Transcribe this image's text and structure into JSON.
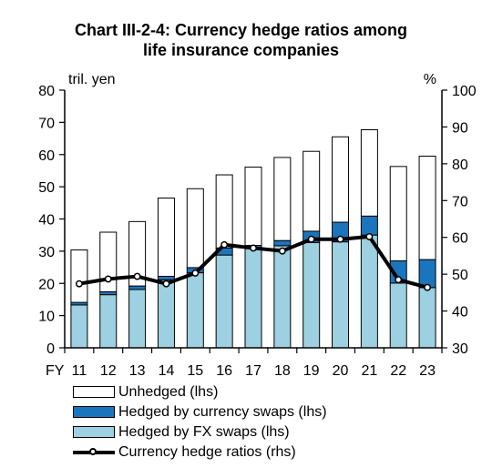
{
  "title_line1": "Chart III-2-4: Currency hedge ratios among",
  "title_line2": "life insurance companies",
  "chart_data": {
    "type": "bar",
    "title": "Chart III-2-4: Currency hedge ratios among life insurance companies",
    "x_prefix": "FY",
    "categories": [
      "11",
      "12",
      "13",
      "14",
      "15",
      "16",
      "17",
      "18",
      "19",
      "20",
      "21",
      "22",
      "23"
    ],
    "ylabel_left": "tril. yen",
    "ylabel_right": "%",
    "ylim_left": [
      0,
      80
    ],
    "yticks_left": [
      "0",
      "10",
      "20",
      "30",
      "40",
      "50",
      "60",
      "70",
      "80"
    ],
    "ylim_right": [
      30,
      100
    ],
    "yticks_right": [
      "30",
      "40",
      "50",
      "60",
      "70",
      "80",
      "90",
      "100"
    ],
    "stacked": true,
    "grid": false,
    "legend_position": "bottom",
    "series": [
      {
        "name": "Hedged by FX swaps (lhs)",
        "axis": "left",
        "color": "#9dd0e0",
        "values": [
          13.3,
          16.5,
          18.1,
          21.1,
          23.3,
          28.8,
          30.8,
          31.7,
          32.7,
          32.9,
          35.0,
          20.1,
          18.7
        ]
      },
      {
        "name": "Hedged by currency swaps (lhs)",
        "axis": "left",
        "color": "#1b75bc",
        "values": [
          0.8,
          0.9,
          1.1,
          1.1,
          1.6,
          2.2,
          1.0,
          1.6,
          3.5,
          6.1,
          5.9,
          6.9,
          8.7
        ]
      },
      {
        "name": "Unhedged (lhs)",
        "axis": "left",
        "color": "#ffffff",
        "values": [
          16.3,
          18.5,
          20.0,
          24.3,
          24.5,
          22.7,
          24.3,
          25.8,
          24.8,
          26.5,
          26.8,
          29.3,
          32.1
        ]
      },
      {
        "name": "Currency hedge ratios (rhs)",
        "axis": "right",
        "type": "line",
        "color": "#000000",
        "values": [
          47.4,
          48.7,
          49.4,
          47.4,
          50.3,
          58.0,
          57.1,
          56.3,
          59.5,
          59.5,
          60.2,
          48.5,
          46.4
        ]
      }
    ]
  },
  "legend_items": [
    {
      "label": "Unhedged (lhs)",
      "color": "#ffffff",
      "kind": "box"
    },
    {
      "label": "Hedged by currency swaps (lhs)",
      "color": "#1b75bc",
      "kind": "box"
    },
    {
      "label": "Hedged by FX swaps (lhs)",
      "color": "#9dd0e0",
      "kind": "box"
    },
    {
      "label": "Currency hedge ratios (rhs)",
      "color": "#000000",
      "kind": "line"
    }
  ]
}
